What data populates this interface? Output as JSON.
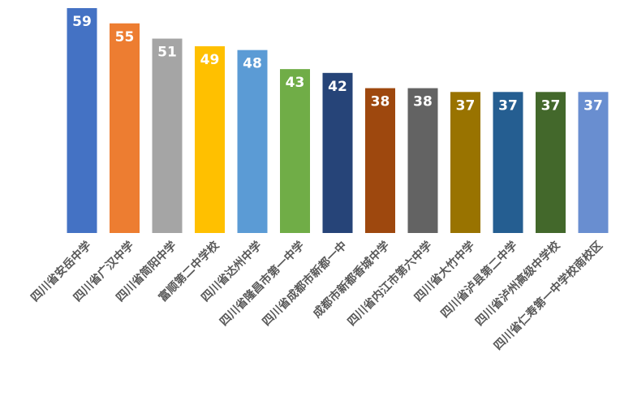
{
  "chart_data": {
    "type": "bar",
    "categories": [
      "四川省安岳中学",
      "四川省广汉中学",
      "四川省简阳中学",
      "富顺第二中学校",
      "四川省达州中学",
      "四川省隆昌市第一中学",
      "四川省成都市新都一中",
      "成都市新都香城中学",
      "四川省内江市第六中学",
      "四川省大竹中学",
      "四川省泸县第二中学",
      "四川省泸州高级中学校",
      "四川省仁寿第一中学校南校区"
    ],
    "values": [
      59,
      55,
      51,
      49,
      48,
      43,
      42,
      38,
      38,
      37,
      37,
      37,
      37
    ],
    "colors": [
      "#4472c4",
      "#ed7d31",
      "#a5a5a5",
      "#ffc000",
      "#5b9bd5",
      "#70ad47",
      "#264478",
      "#9e480e",
      "#636363",
      "#997300",
      "#255e91",
      "#43682b",
      "#698ed0"
    ]
  }
}
